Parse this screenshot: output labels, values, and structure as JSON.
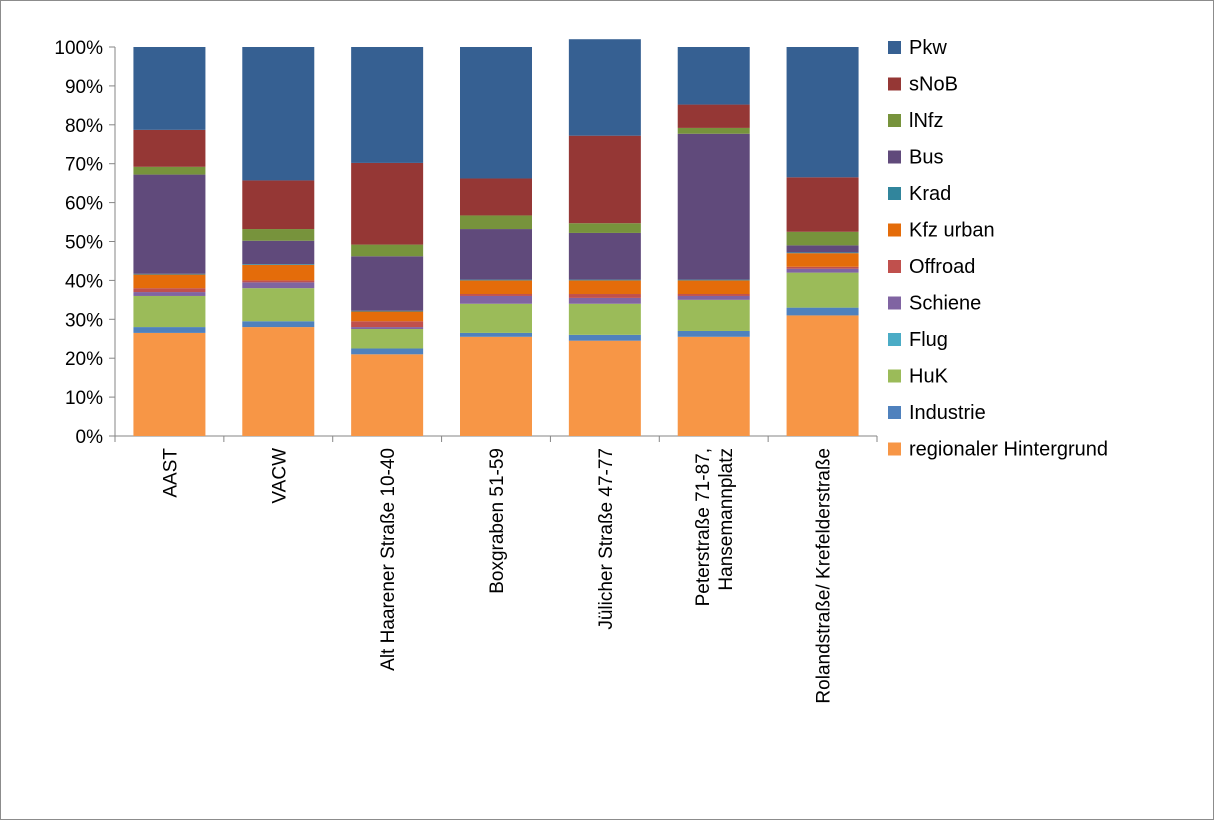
{
  "chart_data": {
    "type": "bar",
    "stacked": true,
    "percent": true,
    "title": "",
    "xlabel": "",
    "ylabel": "",
    "ylim": [
      0,
      100
    ],
    "y_ticks": [
      "0%",
      "10%",
      "20%",
      "30%",
      "40%",
      "50%",
      "60%",
      "70%",
      "80%",
      "90%",
      "100%"
    ],
    "grid": false,
    "legend_position": "right",
    "categories": [
      [
        "AAST"
      ],
      [
        "VACW"
      ],
      [
        "Alt Haarener Straße 10-40"
      ],
      [
        "Boxgraben 51-59"
      ],
      [
        "Jülicher Straße 47-77"
      ],
      [
        "Peterstraße 71-87,",
        "Hansemannplatz"
      ],
      [
        "Rolandstraße/ Krefelderstraße"
      ]
    ],
    "series": [
      {
        "name": "regionaler Hintergrund",
        "color": "#f79646",
        "values": [
          26.5,
          28,
          21,
          25.5,
          24.5,
          25.5,
          31
        ]
      },
      {
        "name": "Industrie",
        "color": "#4f81bd",
        "values": [
          1.5,
          1.5,
          1.5,
          1,
          1.5,
          1.5,
          2
        ]
      },
      {
        "name": "HuK",
        "color": "#9bbb59",
        "values": [
          8,
          8.5,
          5,
          7.5,
          8,
          8,
          9
        ]
      },
      {
        "name": "Flug",
        "color": "#4bacc6",
        "values": [
          0,
          0,
          0,
          0,
          0,
          0,
          0
        ]
      },
      {
        "name": "Schiene",
        "color": "#8064a2",
        "values": [
          1,
          1.5,
          0.5,
          2,
          1.5,
          1,
          1
        ]
      },
      {
        "name": "Offroad",
        "color": "#c0504d",
        "values": [
          1,
          0.5,
          1.5,
          0.5,
          1,
          0.5,
          0.5
        ]
      },
      {
        "name": "Kfz urban",
        "color": "#e46c0a",
        "values": [
          3.5,
          4,
          2.5,
          3.5,
          3.5,
          3.5,
          3.5
        ]
      },
      {
        "name": "Krad",
        "color": "#31859c",
        "values": [
          0.2,
          0.2,
          0.2,
          0.2,
          0.2,
          0.2,
          0.2
        ]
      },
      {
        "name": "Bus",
        "color": "#604a7b",
        "values": [
          25.5,
          6,
          14,
          13,
          12,
          37.5,
          1.8
        ]
      },
      {
        "name": "lNfz",
        "color": "#77933c",
        "values": [
          2,
          3,
          3,
          3.5,
          2.5,
          1.5,
          3.5
        ]
      },
      {
        "name": "sNoB",
        "color": "#953735",
        "values": [
          9.5,
          12.5,
          21,
          9.5,
          22.5,
          6,
          14
        ]
      },
      {
        "name": "Pkw",
        "color": "#366092",
        "values": [
          21.3,
          34.3,
          29.8,
          33.8,
          24.8,
          14.8,
          33.5
        ]
      }
    ],
    "legend_order": [
      "Pkw",
      "sNoB",
      "lNfz",
      "Bus",
      "Krad",
      "Kfz urban",
      "Offroad",
      "Schiene",
      "Flug",
      "HuK",
      "Industrie",
      "regionaler Hintergrund"
    ]
  }
}
